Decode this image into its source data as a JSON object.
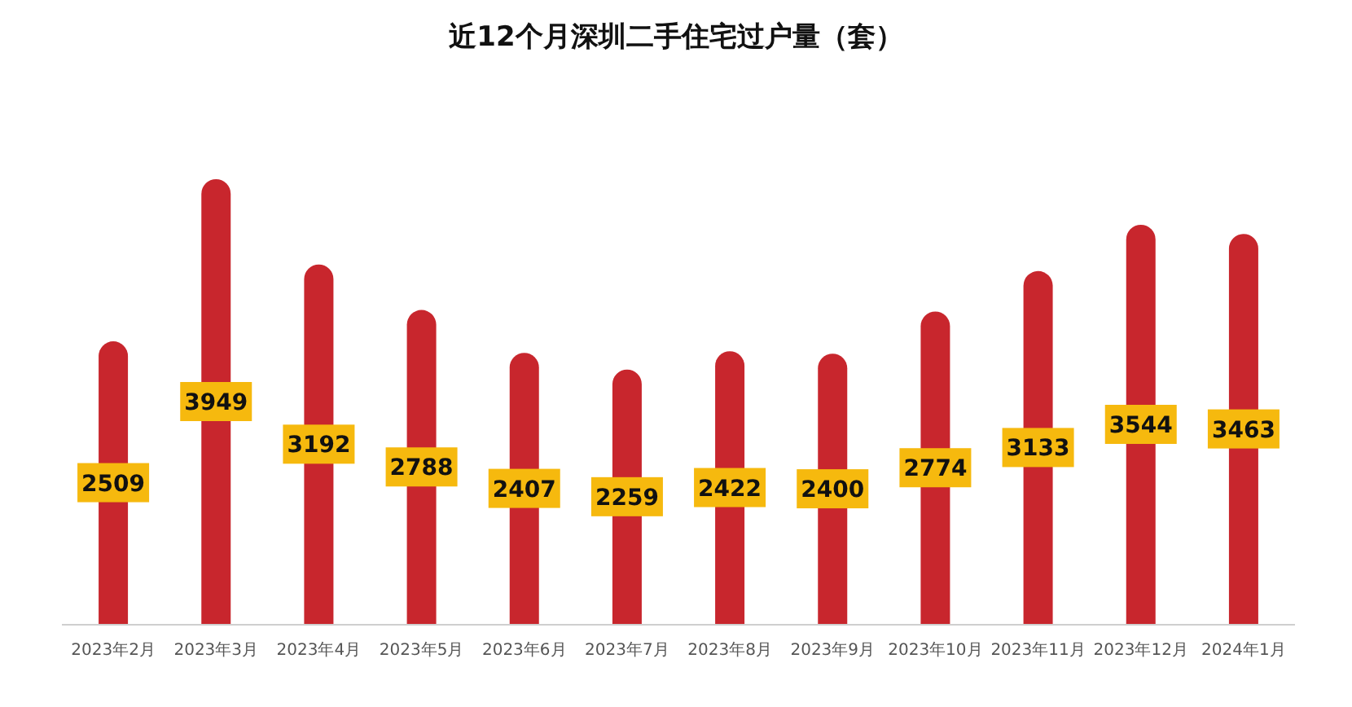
{
  "chart_data": {
    "type": "bar",
    "title": "近12个月深圳二手住宅过户量（套）",
    "categories": [
      "2023年2月",
      "2023年3月",
      "2023年4月",
      "2023年5月",
      "2023年6月",
      "2023年7月",
      "2023年8月",
      "2023年9月",
      "2023年10月",
      "2023年11月",
      "2023年12月",
      "2024年1月"
    ],
    "values": [
      2509,
      3949,
      3192,
      2788,
      2407,
      2259,
      2422,
      2400,
      2774,
      3133,
      3544,
      3463
    ],
    "color": "#c8262d",
    "data_labels": true
  }
}
